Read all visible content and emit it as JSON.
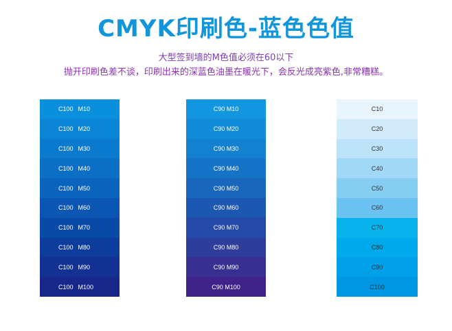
{
  "title": "CMYK印刷色-蓝色色值",
  "subtitle_1": "大型签到墙的M色值必须在60以下",
  "subtitle_2": "抛开印刷色差不谈，印刷出来的深蓝色油墨在暖光下，会反光成亮紫色,非常糟糕。",
  "colors": {
    "title": "#1296db",
    "subtitle_1": "#7a3fb0",
    "subtitle_2": "#8a2fb6"
  },
  "columns": [
    {
      "swatches": [
        {
          "c": "C100",
          "m": "M10",
          "color": "#0a8fdc"
        },
        {
          "c": "C100",
          "m": "M20",
          "color": "#0a85d6"
        },
        {
          "c": "C100",
          "m": "M30",
          "color": "#0a7ace"
        },
        {
          "c": "C100",
          "m": "M40",
          "color": "#0a6fc5"
        },
        {
          "c": "C100",
          "m": "M50",
          "color": "#0a63bc"
        },
        {
          "c": "C100",
          "m": "M60",
          "color": "#0a56b2"
        },
        {
          "c": "C100",
          "m": "M70",
          "color": "#0a4aa7"
        },
        {
          "c": "C100",
          "m": "M80",
          "color": "#0d3d9c"
        },
        {
          "c": "C100",
          "m": "M90",
          "color": "#123193"
        },
        {
          "c": "C100",
          "m": "M100",
          "color": "#17288a"
        }
      ]
    },
    {
      "swatches": [
        {
          "label": "C90 M10",
          "color": "#1196df"
        },
        {
          "label": "C90 M20",
          "color": "#128cd9"
        },
        {
          "label": "C90 M30",
          "color": "#1480d0"
        },
        {
          "label": "C90 M40",
          "color": "#1674c7"
        },
        {
          "label": "C90 M50",
          "color": "#1966bd"
        },
        {
          "label": "C90 M60",
          "color": "#1c58b2"
        },
        {
          "label": "C90 M70",
          "color": "#2549a6"
        },
        {
          "label": "C90 M80",
          "color": "#2e3d9c"
        },
        {
          "label": "C90 M90",
          "color": "#372f92"
        },
        {
          "label": "C90 M100",
          "color": "#3f2388"
        }
      ]
    },
    {
      "swatches": [
        {
          "label": "C10",
          "color": "#e8f5fd"
        },
        {
          "label": "C20",
          "color": "#d3ecfb"
        },
        {
          "label": "C30",
          "color": "#bce3f8"
        },
        {
          "label": "C40",
          "color": "#a1d8f5"
        },
        {
          "label": "C50",
          "color": "#86cdf2"
        },
        {
          "label": "C60",
          "color": "#69c2ef"
        },
        {
          "label": "C70",
          "color": "#08b3ec"
        },
        {
          "label": "C80",
          "color": "#00a9ea"
        },
        {
          "label": "C90",
          "color": "#00a0e9"
        },
        {
          "label": "C100",
          "color": "#0096e1"
        }
      ]
    }
  ]
}
